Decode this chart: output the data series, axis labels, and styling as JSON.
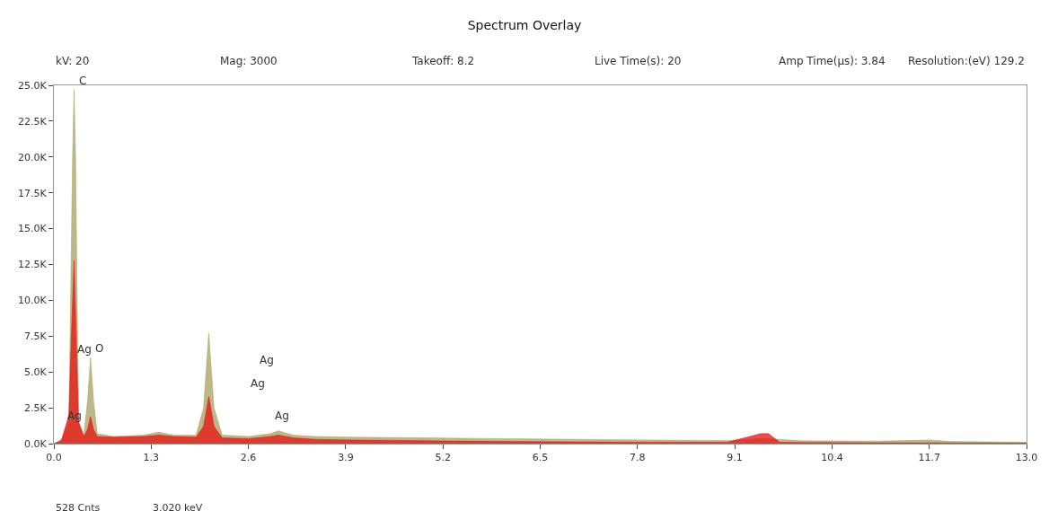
{
  "chart_data": {
    "type": "area",
    "title": "Spectrum Overlay",
    "annotations": [
      "kV: 20",
      "Mag: 3000",
      "Takeoff: 8.2",
      "Live Time(s): 20",
      "Amp Time(µs): 3.84",
      "Resolution:(eV) 129.2",
      "528 Cnts",
      "3.020 keV",
      {
        "text": "C",
        "x": 0.27,
        "y": 24700
      },
      {
        "text": "O",
        "x": 0.49,
        "y": 6000
      },
      "Ag",
      "Ag",
      "Ag",
      "Ag",
      "Ag"
    ],
    "series": [
      {
        "color": "#a8a060",
        "x": [
          0,
          0.1,
          0.2,
          0.25,
          0.27,
          0.29,
          0.33,
          0.4,
          0.45,
          0.49,
          0.53,
          0.58,
          0.8,
          1.2,
          1.4,
          1.6,
          1.9,
          2.0,
          2.07,
          2.14,
          2.25,
          2.6,
          2.9,
          3.0,
          3.2,
          3.5,
          4.0,
          5.0,
          6.0,
          7.0,
          8.0,
          9.0,
          9.45,
          9.55,
          10,
          11,
          11.7,
          12,
          13
        ],
        "values": [
          0,
          300,
          1500,
          20000,
          24700,
          20000,
          1500,
          600,
          3000,
          6000,
          3000,
          700,
          500,
          600,
          800,
          600,
          600,
          2500,
          7700,
          2500,
          600,
          500,
          700,
          900,
          600,
          500,
          450,
          400,
          350,
          300,
          250,
          220,
          350,
          350,
          200,
          180,
          250,
          150,
          100
        ]
      },
      {
        "color": "#e81010",
        "x": [
          0,
          0.1,
          0.2,
          0.25,
          0.27,
          0.29,
          0.33,
          0.4,
          0.45,
          0.49,
          0.53,
          0.58,
          0.8,
          1.2,
          1.4,
          1.6,
          1.9,
          2.0,
          2.07,
          2.14,
          2.25,
          2.6,
          2.9,
          3.0,
          3.2,
          3.5,
          4.0,
          5.0,
          6.0,
          7.0,
          8.0,
          9.0,
          9.45,
          9.55,
          9.7,
          10,
          11,
          12,
          13
        ],
        "values": [
          0,
          200,
          2000,
          10000,
          12800,
          9000,
          1500,
          500,
          1000,
          1900,
          1000,
          500,
          450,
          500,
          600,
          500,
          450,
          1200,
          3300,
          1200,
          400,
          350,
          500,
          600,
          400,
          300,
          250,
          200,
          150,
          120,
          100,
          100,
          700,
          700,
          100,
          80,
          60,
          50,
          40
        ]
      }
    ],
    "xlim": [
      0,
      13
    ],
    "xticks": [
      {
        "value": 0,
        "label": "0.0"
      },
      1.3,
      2.6,
      3.9,
      5.2,
      6.5,
      7.8,
      9.1,
      10.4,
      11.7,
      {
        "value": 13,
        "label": "13.0"
      }
    ],
    "ylim": [
      0,
      25000
    ],
    "yticks": [
      {
        "value": 0,
        "label": "0.0K"
      },
      {
        "value": 2500,
        "label": "2.5K"
      },
      {
        "value": 5000,
        "label": "5.0K"
      },
      {
        "value": 7500,
        "label": "7.5K"
      },
      {
        "value": 10000,
        "label": "10.0K"
      },
      {
        "value": 12500,
        "label": "12.5K"
      },
      {
        "value": 15000,
        "label": "15.0K"
      },
      {
        "value": 17500,
        "label": "17.5K"
      },
      {
        "value": 20000,
        "label": "20.0K"
      },
      {
        "value": 22500,
        "label": "22.5K"
      },
      {
        "value": 25000,
        "label": "25.0K"
      }
    ]
  }
}
